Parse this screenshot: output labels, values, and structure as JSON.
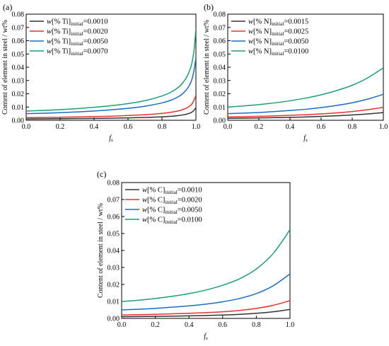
{
  "chart_data": [
    {
      "type": "line",
      "panel_label": "(a)",
      "title": "",
      "xlabel": "f",
      "xlabel_sub": "s",
      "ylabel": "Content of element in steel / wt%",
      "xlim": [
        0,
        1
      ],
      "ylim": [
        0,
        0.08
      ],
      "xticks": [
        "0.0",
        "0.2",
        "0.4",
        "0.6",
        "0.8",
        "1.0"
      ],
      "yticks": [
        "0.00",
        "0.01",
        "0.02",
        "0.03",
        "0.04",
        "0.05",
        "0.06",
        "0.07",
        "0.08"
      ],
      "legend_position": "top-left",
      "x": [
        0,
        0.1,
        0.2,
        0.3,
        0.4,
        0.5,
        0.6,
        0.7,
        0.8,
        0.85,
        0.9,
        0.93,
        0.95,
        0.97,
        0.98,
        0.99,
        1.0
      ],
      "series": [
        {
          "name_pre": "w[% Ti]",
          "name_sub": "initial",
          "name_post": "=0.0010",
          "color": "#333333",
          "values": [
            0.001,
            0.0011,
            0.0012,
            0.0013,
            0.0014,
            0.0016,
            0.0018,
            0.0021,
            0.0026,
            0.003,
            0.0036,
            0.0042,
            0.0048,
            0.0057,
            0.0065,
            0.0077,
            0.0095
          ]
        },
        {
          "name_pre": "w[% Ti]",
          "name_sub": "initial",
          "name_post": "=0.0020",
          "color": "#e8322e",
          "values": [
            0.002,
            0.0021,
            0.0023,
            0.0025,
            0.0028,
            0.0031,
            0.0036,
            0.0042,
            0.0052,
            0.006,
            0.0072,
            0.0084,
            0.0096,
            0.0114,
            0.013,
            0.0155,
            0.019
          ]
        },
        {
          "name_pre": "w[% Ti]",
          "name_sub": "initial",
          "name_post": "=0.0050",
          "color": "#1b6dc1",
          "values": [
            0.005,
            0.0053,
            0.0057,
            0.0063,
            0.007,
            0.0079,
            0.009,
            0.0106,
            0.0131,
            0.015,
            0.018,
            0.021,
            0.024,
            0.0285,
            0.0325,
            0.0385,
            0.047
          ]
        },
        {
          "name_pre": "w[% Ti]",
          "name_sub": "initial",
          "name_post": "=0.0070",
          "color": "#1e9e73",
          "values": [
            0.007,
            0.0074,
            0.008,
            0.0088,
            0.0098,
            0.011,
            0.0126,
            0.0148,
            0.0183,
            0.021,
            0.0252,
            0.0295,
            0.0336,
            0.04,
            0.0455,
            0.054,
            0.069
          ]
        }
      ]
    },
    {
      "type": "line",
      "panel_label": "(b)",
      "title": "",
      "xlabel": "f",
      "xlabel_sub": "s",
      "ylabel": "Content of element in steel / wt%",
      "xlim": [
        0,
        1
      ],
      "ylim": [
        0,
        0.08
      ],
      "xticks": [
        "0.0",
        "0.2",
        "0.4",
        "0.6",
        "0.8",
        "1.0"
      ],
      "yticks": [
        "0.00",
        "0.01",
        "0.02",
        "0.03",
        "0.04",
        "0.05",
        "0.06",
        "0.07",
        "0.08"
      ],
      "legend_position": "top-left",
      "x": [
        0,
        0.1,
        0.2,
        0.3,
        0.4,
        0.5,
        0.6,
        0.7,
        0.8,
        0.9,
        1.0
      ],
      "series": [
        {
          "name_pre": "w[% N]",
          "name_sub": "initial",
          "name_post": "=0.0015",
          "color": "#333333",
          "values": [
            0.0015,
            0.0016,
            0.0018,
            0.002,
            0.0022,
            0.0025,
            0.0029,
            0.0034,
            0.004,
            0.0048,
            0.0058
          ]
        },
        {
          "name_pre": "w[% N]",
          "name_sub": "initial",
          "name_post": "=0.0025",
          "color": "#e8322e",
          "values": [
            0.0025,
            0.0027,
            0.003,
            0.0033,
            0.0037,
            0.0042,
            0.0048,
            0.0056,
            0.0066,
            0.008,
            0.0098
          ]
        },
        {
          "name_pre": "w[% N]",
          "name_sub": "initial",
          "name_post": "=0.0050",
          "color": "#1b6dc1",
          "values": [
            0.005,
            0.0054,
            0.0059,
            0.0066,
            0.0074,
            0.0083,
            0.0096,
            0.0112,
            0.0132,
            0.016,
            0.0196
          ]
        },
        {
          "name_pre": "w[% N]",
          "name_sub": "initial",
          "name_post": "=0.0100",
          "color": "#1e9e73",
          "values": [
            0.01,
            0.0108,
            0.0118,
            0.0131,
            0.0147,
            0.0167,
            0.0192,
            0.0224,
            0.0264,
            0.032,
            0.0395
          ]
        }
      ]
    },
    {
      "type": "line",
      "panel_label": "(c)",
      "title": "",
      "xlabel": "f",
      "xlabel_sub": "s",
      "ylabel": "Content of element in steel / wt%",
      "xlim": [
        0,
        1
      ],
      "ylim": [
        0,
        0.08
      ],
      "xticks": [
        "0.0",
        "0.2",
        "0.4",
        "0.6",
        "0.8",
        "1.0"
      ],
      "yticks": [
        "0.00",
        "0.01",
        "0.02",
        "0.03",
        "0.04",
        "0.05",
        "0.06",
        "0.07",
        "0.08"
      ],
      "legend_position": "top-left",
      "x": [
        0,
        0.1,
        0.2,
        0.3,
        0.4,
        0.5,
        0.6,
        0.7,
        0.8,
        0.9,
        1.0
      ],
      "series": [
        {
          "name_pre": "w[% C]",
          "name_sub": "initial",
          "name_post": "=0.0010",
          "color": "#333333",
          "values": [
            0.001,
            0.0011,
            0.0012,
            0.0013,
            0.0015,
            0.0017,
            0.002,
            0.0024,
            0.003,
            0.0039,
            0.0053
          ]
        },
        {
          "name_pre": "w[% C]",
          "name_sub": "initial",
          "name_post": "=0.0020",
          "color": "#e8322e",
          "values": [
            0.002,
            0.0022,
            0.0024,
            0.0027,
            0.003,
            0.0034,
            0.0039,
            0.0047,
            0.0059,
            0.0077,
            0.0105
          ]
        },
        {
          "name_pre": "w[% C]",
          "name_sub": "initial",
          "name_post": "=0.0050",
          "color": "#1b6dc1",
          "values": [
            0.005,
            0.0054,
            0.0059,
            0.0066,
            0.0074,
            0.0084,
            0.0098,
            0.0117,
            0.0146,
            0.0192,
            0.0262
          ]
        },
        {
          "name_pre": "w[% C]",
          "name_sub": "initial",
          "name_post": "=0.0100",
          "color": "#1e9e73",
          "values": [
            0.01,
            0.0107,
            0.0117,
            0.013,
            0.0146,
            0.0167,
            0.0195,
            0.0233,
            0.0291,
            0.0382,
            0.0522
          ]
        }
      ]
    }
  ]
}
